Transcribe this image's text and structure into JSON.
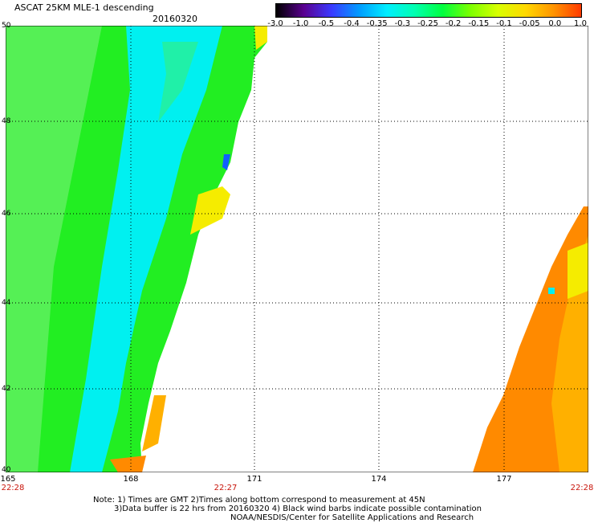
{
  "header": {
    "title": "ASCAT 25KM MLE-1 descending",
    "date": "20160320"
  },
  "colorbar": {
    "labels": [
      "-3.0",
      "-1.0",
      "-0.5",
      "-0.4",
      "-0.35",
      "-0.3",
      "-0.25",
      "-0.2",
      "-0.15",
      "-0.1",
      "-0.05",
      "0.0",
      "1.0"
    ],
    "colors": [
      "#000000",
      "#5a0090",
      "#3a3aff",
      "#009cff",
      "#00eeff",
      "#00ffb0",
      "#00ff40",
      "#7cff00",
      "#d8ff00",
      "#ffd800",
      "#ff9400",
      "#ff3a00"
    ]
  },
  "map": {
    "lat_labels": [
      "50",
      "48",
      "46",
      "44",
      "42",
      "40"
    ],
    "lon_labels": [
      "165",
      "168",
      "171",
      "174",
      "177"
    ],
    "time_labels": [
      "22:28",
      "22:27",
      "22:28"
    ],
    "colors": {
      "green": "#22ee22",
      "light_green": "#55f055",
      "cyan": "#00f0f0",
      "teal": "#20f0a8",
      "yellow": "#f5ec00",
      "orange": "#ff8a00",
      "light_orange": "#ffb000",
      "blue": "#1060ff"
    }
  },
  "notes": {
    "line1": "Note: 1) Times are GMT 2)Times along bottom correspond to measurement at 45N",
    "line2": "3)Data buffer is 22 hrs from 20160320 4) Black wind barbs indicate possible contamination",
    "line3": "NOAA/NESDIS/Center for Satellite Applications and Research"
  }
}
